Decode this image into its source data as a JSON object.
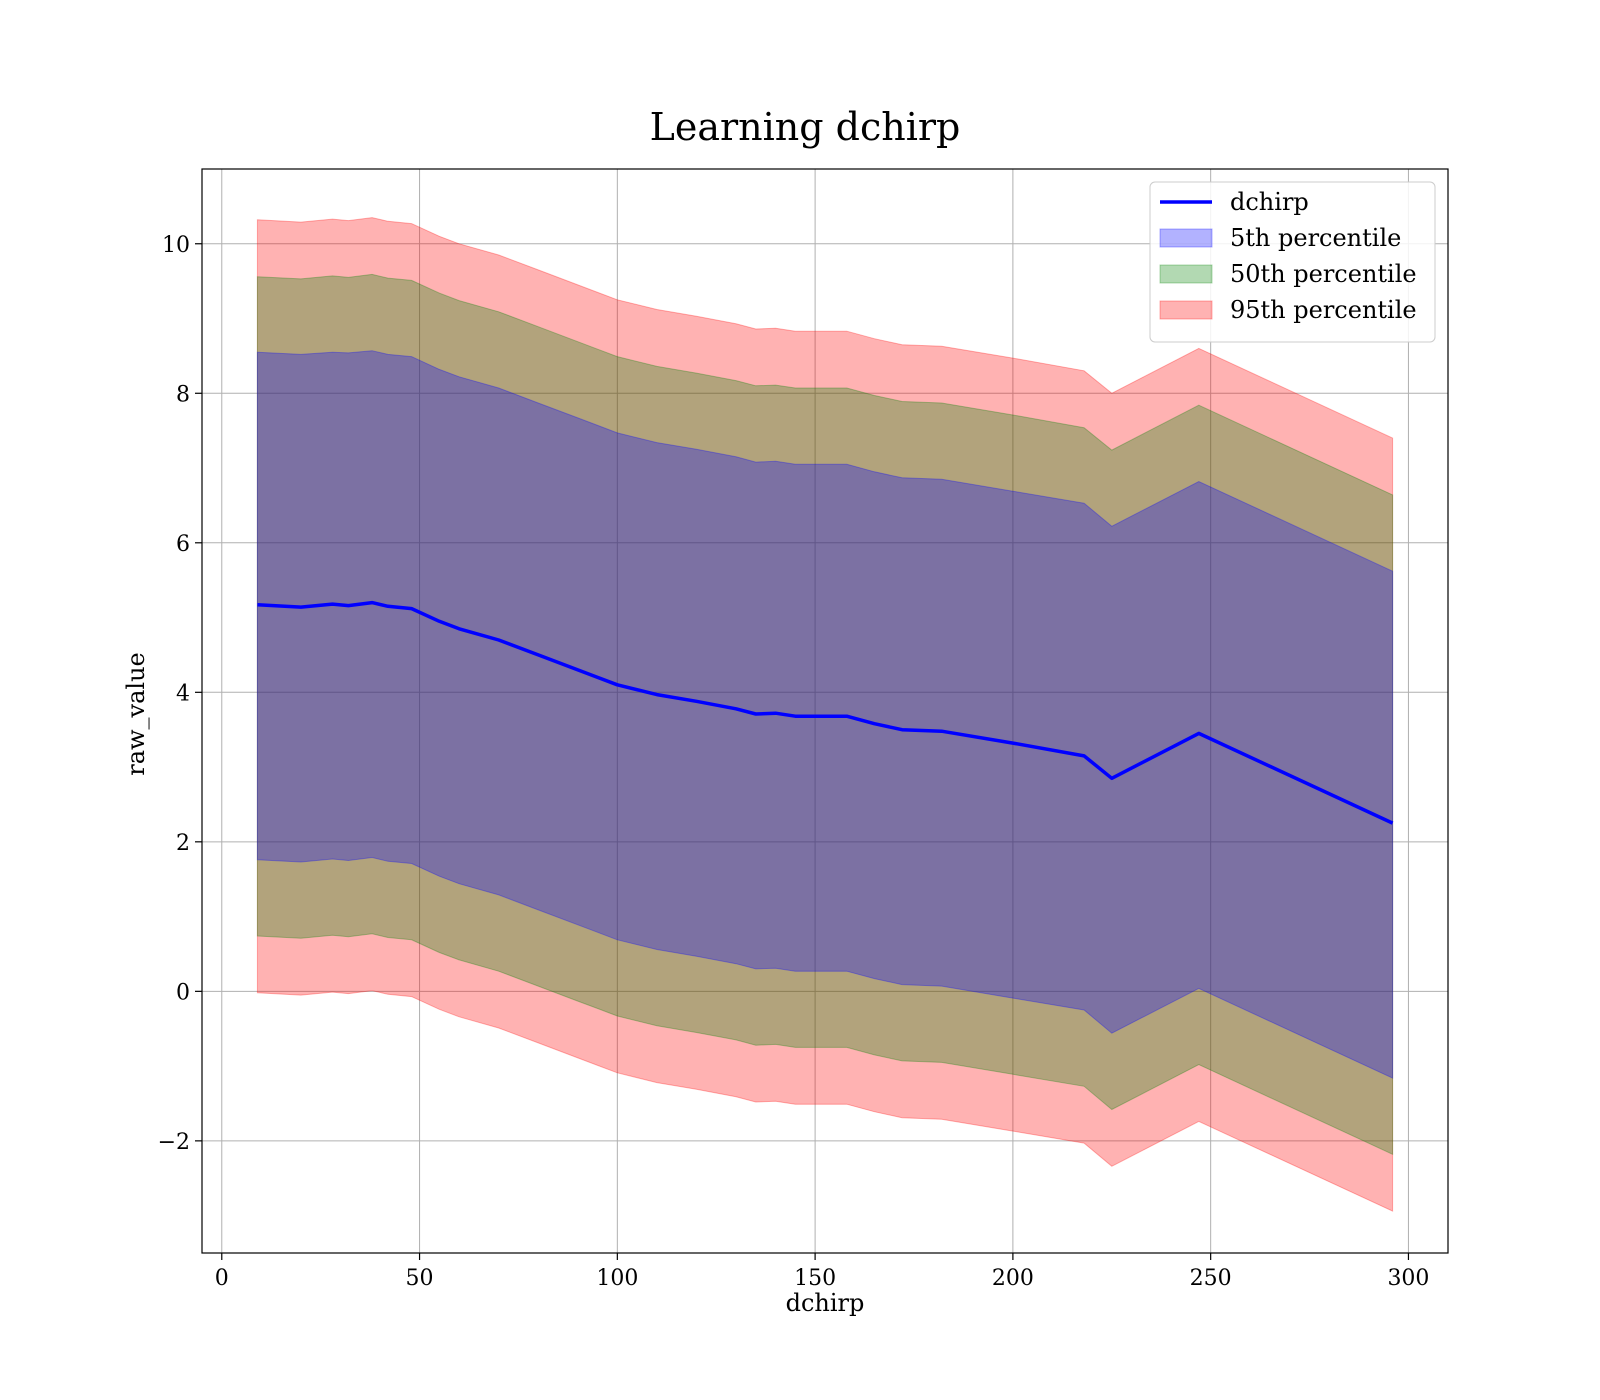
{
  "chart_data": {
    "type": "line",
    "title": "Learning dchirp",
    "xlabel": "dchirp",
    "ylabel": "raw_value",
    "xlim": [
      -5,
      310
    ],
    "ylim": [
      -3.5,
      11
    ],
    "xticks": [
      0,
      50,
      100,
      150,
      200,
      250,
      300
    ],
    "yticks": [
      -2,
      0,
      2,
      4,
      6,
      8,
      10
    ],
    "grid": true,
    "legend_position": "top-right",
    "x": [
      9,
      20,
      28,
      32,
      38,
      42,
      48,
      55,
      60,
      70,
      80,
      90,
      95,
      100,
      110,
      120,
      130,
      135,
      140,
      145,
      158,
      165,
      172,
      182,
      200,
      218,
      225,
      247,
      296
    ],
    "series": [
      {
        "name": "dchirp",
        "kind": "line",
        "color": "#0000ff",
        "values": [
          5.17,
          5.14,
          5.18,
          5.16,
          5.2,
          5.15,
          5.12,
          4.95,
          4.85,
          4.7,
          4.5,
          4.3,
          4.2,
          4.1,
          3.97,
          3.88,
          3.78,
          3.71,
          3.72,
          3.68,
          3.68,
          3.58,
          3.5,
          3.48,
          3.32,
          3.15,
          2.85,
          3.45,
          2.25
        ]
      },
      {
        "name": "5th percentile",
        "kind": "band",
        "color": "#0000ff",
        "upper": [
          8.55,
          8.52,
          8.55,
          8.54,
          8.57,
          8.52,
          8.49,
          8.32,
          8.22,
          8.07,
          7.87,
          7.67,
          7.57,
          7.47,
          7.34,
          7.25,
          7.15,
          7.08,
          7.09,
          7.05,
          7.05,
          6.95,
          6.87,
          6.85,
          6.69,
          6.53,
          6.22,
          6.82,
          5.62
        ],
        "lower": [
          1.76,
          1.73,
          1.77,
          1.75,
          1.79,
          1.74,
          1.71,
          1.54,
          1.44,
          1.29,
          1.09,
          0.89,
          0.79,
          0.69,
          0.56,
          0.47,
          0.37,
          0.3,
          0.31,
          0.27,
          0.27,
          0.17,
          0.09,
          0.07,
          -0.09,
          -0.25,
          -0.56,
          0.04,
          -1.16
        ]
      },
      {
        "name": "50th percentile",
        "kind": "band",
        "color": "#008000",
        "upper": [
          9.56,
          9.53,
          9.57,
          9.55,
          9.59,
          9.54,
          9.51,
          9.34,
          9.24,
          9.09,
          8.89,
          8.69,
          8.59,
          8.49,
          8.36,
          8.27,
          8.17,
          8.1,
          8.11,
          8.07,
          8.07,
          7.97,
          7.89,
          7.87,
          7.71,
          7.54,
          7.24,
          7.84,
          6.64
        ],
        "lower": [
          0.74,
          0.71,
          0.75,
          0.73,
          0.77,
          0.72,
          0.69,
          0.52,
          0.42,
          0.27,
          0.07,
          -0.13,
          -0.23,
          -0.33,
          -0.46,
          -0.55,
          -0.65,
          -0.72,
          -0.71,
          -0.75,
          -0.75,
          -0.85,
          -0.93,
          -0.95,
          -1.11,
          -1.27,
          -1.58,
          -0.98,
          -2.18
        ]
      },
      {
        "name": "95th percentile",
        "kind": "band",
        "color": "#ff0000",
        "upper": [
          10.32,
          10.29,
          10.33,
          10.31,
          10.35,
          10.3,
          10.27,
          10.1,
          10.0,
          9.85,
          9.65,
          9.45,
          9.35,
          9.25,
          9.12,
          9.03,
          8.93,
          8.86,
          8.87,
          8.83,
          8.83,
          8.73,
          8.65,
          8.63,
          8.47,
          8.3,
          8.0,
          8.6,
          7.4
        ],
        "lower": [
          -0.02,
          -0.05,
          -0.01,
          -0.03,
          0.01,
          -0.04,
          -0.07,
          -0.24,
          -0.34,
          -0.49,
          -0.69,
          -0.89,
          -0.99,
          -1.09,
          -1.22,
          -1.31,
          -1.41,
          -1.48,
          -1.47,
          -1.51,
          -1.51,
          -1.61,
          -1.69,
          -1.71,
          -1.87,
          -2.03,
          -2.34,
          -1.74,
          -2.94
        ]
      }
    ]
  }
}
